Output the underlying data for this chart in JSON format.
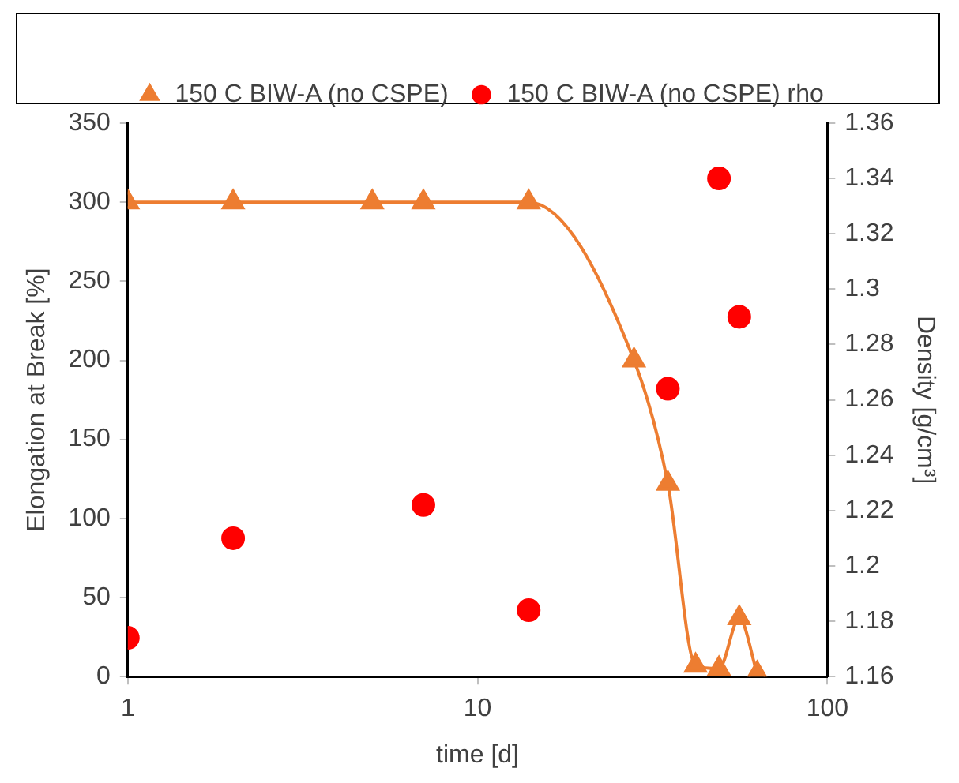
{
  "chart_data": {
    "type": "line",
    "xlabel": "time [d]",
    "ylabel": "Elongation at Break [%]",
    "y2label": "Density [g/cm³]",
    "log": "x",
    "xlim": [
      1,
      100
    ],
    "xticks": [
      1,
      10,
      100
    ],
    "ylim": [
      0,
      350
    ],
    "yticks": [
      0,
      50,
      100,
      150,
      200,
      250,
      300,
      350
    ],
    "y2lim": [
      1.16,
      1.36
    ],
    "y2ticks": [
      1.16,
      1.18,
      {
        "value": 1.2,
        "label": "1.2"
      },
      1.22,
      1.24,
      1.26,
      1.28,
      {
        "value": 1.3,
        "label": "1.3"
      },
      1.32,
      1.34,
      1.36
    ],
    "legend": "top",
    "grid": false,
    "series": [
      {
        "name": "150 C BIW-A (no CSPE)",
        "color": "#ed7d31",
        "marker": "triangle",
        "x": [
          1,
          2,
          5,
          7,
          14,
          28,
          35,
          42,
          49,
          56,
          63
        ],
        "values": [
          300,
          300,
          300,
          300,
          300,
          200,
          122,
          7,
          5,
          37,
          2
        ]
      },
      {
        "name": "150 C BIW-A (no CSPE) rho",
        "type": "scatter",
        "axis": "y2",
        "color": "#ff0000",
        "marker": "circle",
        "x": [
          1,
          2,
          7,
          14,
          35,
          49,
          56
        ],
        "values": [
          1.174,
          1.21,
          1.222,
          1.184,
          1.264,
          1.34,
          1.29
        ]
      }
    ]
  }
}
